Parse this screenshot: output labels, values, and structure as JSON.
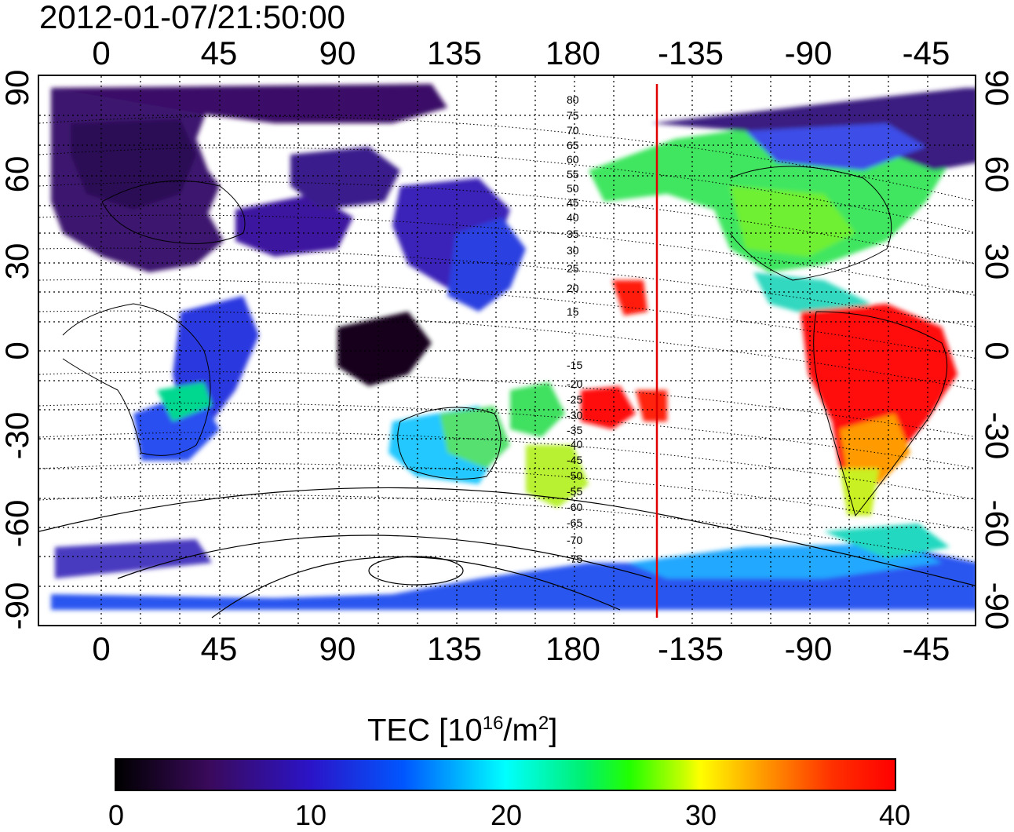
{
  "header": {
    "timestamp": "2012-01-07/21:50:00"
  },
  "axes": {
    "x_ticks": [
      "0",
      "45",
      "90",
      "135",
      "180",
      "-135",
      "-90",
      "-45"
    ],
    "y_ticks_left": [
      "90",
      "60",
      "30",
      "0",
      "-30",
      "-60",
      "-90"
    ],
    "y_ticks_right": [
      "90",
      "60",
      "30",
      "0",
      "-30",
      "-60",
      "-90"
    ]
  },
  "map": {
    "projection": "cylindrical",
    "longitude_start": -20,
    "longitude_end": 340,
    "latitude_range": [
      -90,
      90
    ],
    "grid": "dotted",
    "meridian_line": {
      "longitude": -157,
      "color": "#e00000"
    },
    "contour_labels": [
      "80",
      "75",
      "70",
      "65",
      "60",
      "55",
      "50",
      "45",
      "40",
      "35",
      "30",
      "25",
      "20",
      "15",
      "-15",
      "-20",
      "-25",
      "-30",
      "-35",
      "-40",
      "-45",
      "-50",
      "-55",
      "-60",
      "-65",
      "-70",
      "-75"
    ]
  },
  "colorbar": {
    "title_prefix": "TEC  [10",
    "title_exp1": "16",
    "title_mid": "/m",
    "title_exp2": "2",
    "title_suffix": "]",
    "labels": [
      "0",
      "10",
      "20",
      "30",
      "40"
    ],
    "range": [
      0,
      40
    ],
    "colormap": [
      "#000000",
      "#3a0a5c",
      "#2b14c8",
      "#0057ff",
      "#00ffff",
      "#22ff00",
      "#ffff00",
      "#ff9b00",
      "#ff0000"
    ]
  }
}
